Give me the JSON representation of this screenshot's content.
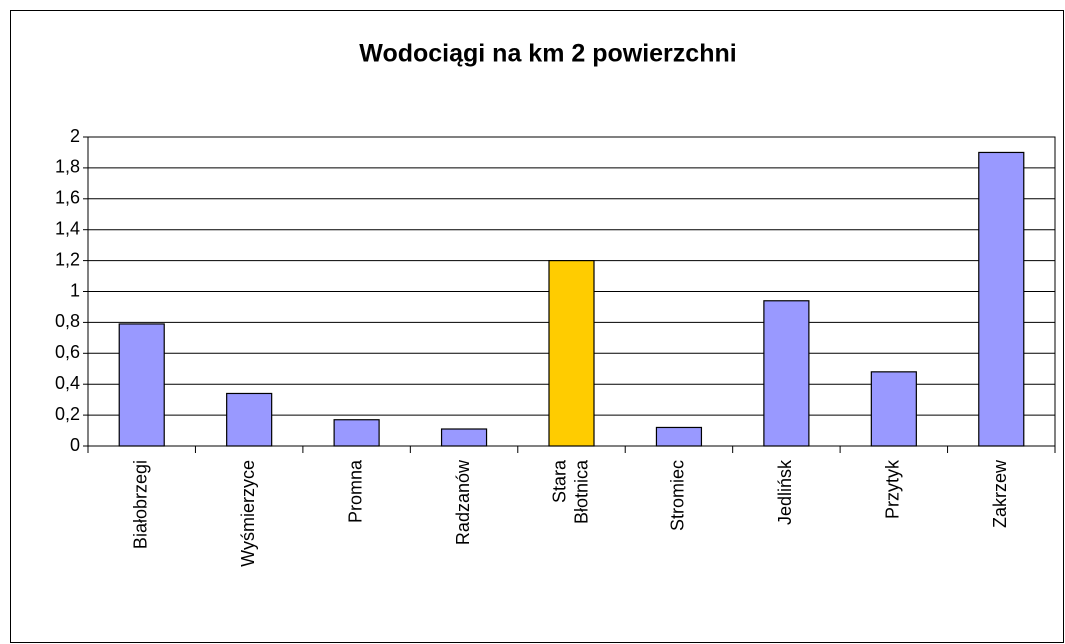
{
  "chart_data": {
    "type": "bar",
    "title": "Wodociągi na km 2 powierzchni",
    "categories": [
      "Białobrzegi",
      "Wyśmierzyce",
      "Promna",
      "Radzanów",
      "Stara Błotnica",
      "Stromiec",
      "Jedlińsk",
      "Przytyk",
      "Zakrzew"
    ],
    "values": [
      0.79,
      0.34,
      0.17,
      0.11,
      1.2,
      0.12,
      0.94,
      0.48,
      1.9
    ],
    "colors": [
      "#9999ff",
      "#9999ff",
      "#9999ff",
      "#9999ff",
      "#ffcc00",
      "#9999ff",
      "#9999ff",
      "#9999ff",
      "#9999ff"
    ],
    "ylim": [
      0,
      2
    ],
    "yticks": [
      0,
      {
        "value": 0.2,
        "label": "0,2"
      },
      {
        "value": 0.4,
        "label": "0,4"
      },
      {
        "value": 0.6,
        "label": "0,6"
      },
      {
        "value": 0.8,
        "label": "0,8"
      },
      1,
      {
        "value": 1.2,
        "label": "1,2"
      },
      {
        "value": 1.4,
        "label": "1,4"
      },
      {
        "value": 1.6,
        "label": "1,6"
      },
      {
        "value": 1.8,
        "label": "1,8"
      },
      2
    ],
    "grid": true
  }
}
